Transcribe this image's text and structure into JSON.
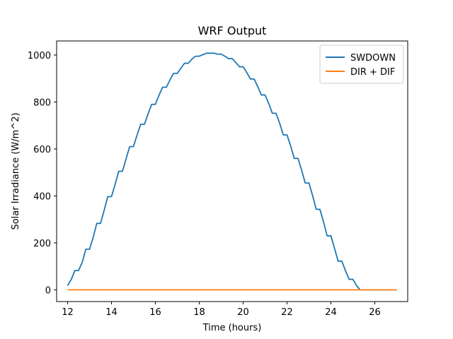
{
  "chart_data": {
    "type": "line",
    "title": "WRF Output",
    "xlabel": "Time (hours)",
    "ylabel": "Solar Irradiance (W/m^2)",
    "xlim": [
      11.5,
      27.5
    ],
    "ylim": [
      -50,
      1060
    ],
    "xticks": [
      12,
      14,
      16,
      18,
      20,
      22,
      24,
      26
    ],
    "yticks": [
      0,
      200,
      400,
      600,
      800,
      1000
    ],
    "grid": false,
    "legend_position": "top-right",
    "colors": {
      "swdown": "#1f77b4",
      "dirdif": "#ff7f0e"
    },
    "series": [
      {
        "name": "SWDOWN",
        "color": "#1f77b4",
        "x": [
          12.0,
          12.17,
          12.33,
          12.5,
          12.67,
          12.83,
          13.0,
          13.17,
          13.33,
          13.5,
          13.67,
          13.83,
          14.0,
          14.17,
          14.33,
          14.5,
          14.67,
          14.83,
          15.0,
          15.17,
          15.33,
          15.5,
          15.67,
          15.83,
          16.0,
          16.17,
          16.33,
          16.5,
          16.67,
          16.83,
          17.0,
          17.17,
          17.33,
          17.5,
          17.67,
          17.83,
          18.0,
          18.17,
          18.33,
          18.5,
          18.67,
          18.83,
          19.0,
          19.17,
          19.33,
          19.5,
          19.67,
          19.83,
          20.0,
          20.17,
          20.33,
          20.5,
          20.67,
          20.83,
          21.0,
          21.17,
          21.33,
          21.5,
          21.67,
          21.83,
          22.0,
          22.17,
          22.33,
          22.5,
          22.67,
          22.83,
          23.0,
          23.17,
          23.33,
          23.5,
          23.67,
          23.83,
          24.0,
          24.17,
          24.33,
          24.5,
          24.67,
          24.83,
          25.0,
          25.17,
          25.33,
          25.5,
          26.0,
          26.5,
          27.0
        ],
        "y": [
          18,
          45,
          82,
          82,
          118,
          173,
          173,
          225,
          283,
          283,
          340,
          397,
          397,
          450,
          505,
          505,
          560,
          610,
          610,
          660,
          705,
          705,
          750,
          790,
          790,
          830,
          863,
          863,
          895,
          922,
          922,
          945,
          965,
          965,
          983,
          995,
          995,
          1002,
          1008,
          1008,
          1008,
          1004,
          1004,
          995,
          985,
          985,
          968,
          950,
          950,
          925,
          898,
          898,
          865,
          830,
          830,
          793,
          752,
          752,
          708,
          660,
          660,
          612,
          560,
          560,
          508,
          455,
          455,
          400,
          343,
          343,
          287,
          230,
          230,
          175,
          122,
          122,
          80,
          45,
          45,
          18,
          0,
          0,
          0,
          0,
          0
        ]
      },
      {
        "name": "DIR + DIF",
        "color": "#ff7f0e",
        "x": [
          12,
          27
        ],
        "y": [
          0,
          0
        ]
      }
    ]
  }
}
